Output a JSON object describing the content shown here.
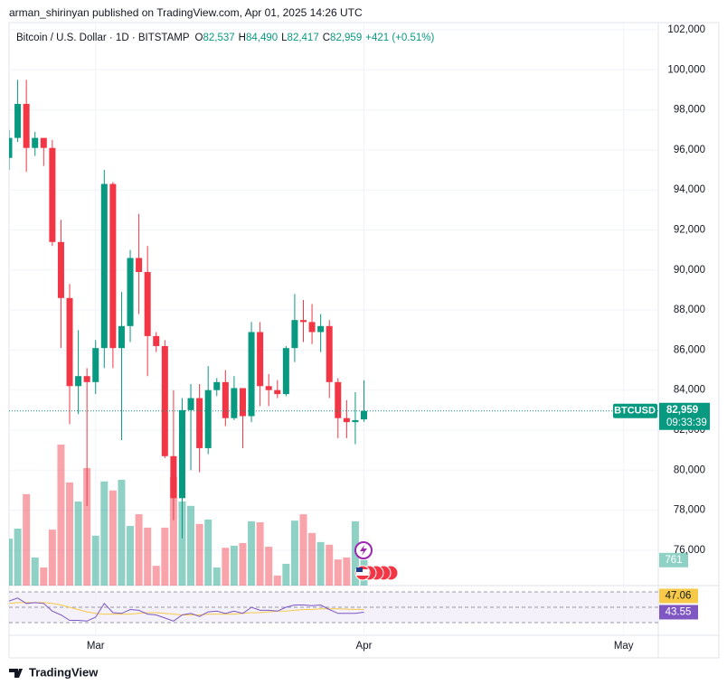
{
  "header": {
    "text": "arman_shirinyan published on TradingView.com, Apr 01, 2025 14:26 UTC"
  },
  "legend": {
    "symbol": "Bitcoin / U.S. Dollar · 1D · BITSTAMP",
    "items": [
      {
        "label": "O",
        "value": "82,537"
      },
      {
        "label": "H",
        "value": "84,490"
      },
      {
        "label": "L",
        "value": "82,417"
      },
      {
        "label": "C",
        "value": "82,959"
      }
    ],
    "change": "+421 (+0.51%)"
  },
  "footer": {
    "brand": "TradingView"
  },
  "chart_data": [
    {
      "type": "candlestick",
      "xlim": [
        0,
        75
      ],
      "xticks": [
        {
          "value": 10,
          "label": "Mar"
        },
        {
          "value": 41,
          "label": "Apr"
        },
        {
          "value": 71,
          "label": "May"
        }
      ],
      "ylim": [
        74235,
        102361
      ],
      "yticks": [
        {
          "value": 76000,
          "label": "76,000"
        },
        {
          "value": 78000,
          "label": "78,000"
        },
        {
          "value": 80000,
          "label": "80,000"
        },
        {
          "value": 82000,
          "label": "82,000"
        },
        {
          "value": 84000,
          "label": "84,000"
        },
        {
          "value": 86000,
          "label": "86,000"
        },
        {
          "value": 88000,
          "label": "88,000"
        },
        {
          "value": 90000,
          "label": "90,000"
        },
        {
          "value": 92000,
          "label": "92,000"
        },
        {
          "value": 94000,
          "label": "94,000"
        },
        {
          "value": 96000,
          "label": "96,000"
        },
        {
          "value": 98000,
          "label": "98,000"
        },
        {
          "value": 100000,
          "label": "100,000"
        },
        {
          "value": 102000,
          "label": "102,000"
        }
      ],
      "grid": true,
      "series": [
        {
          "name": "BTCUSD",
          "up_color": "#089981",
          "down_color": "#f23645",
          "open": [
            95600,
            96600,
            98300,
            96100,
            96600,
            96100,
            91400,
            88600,
            84200,
            84700,
            84400,
            86100,
            94300,
            86100,
            87200,
            90600,
            89900,
            86700,
            86200,
            80700,
            78600,
            83000,
            83600,
            81100,
            84000,
            84400,
            82600,
            84100,
            82700,
            86900,
            84200,
            84000,
            83800,
            86100,
            87500,
            87400,
            86900,
            87200,
            84400,
            82600,
            82400,
            82537
          ],
          "high": [
            97000,
            99500,
            99500,
            96900,
            96500,
            96500,
            92500,
            89300,
            87000,
            85100,
            86500,
            95000,
            94400,
            88900,
            91000,
            92800,
            91200,
            86900,
            86500,
            84000,
            83600,
            84300,
            84300,
            85200,
            84600,
            85000,
            84700,
            84100,
            87400,
            87400,
            84800,
            84500,
            86200,
            88800,
            88500,
            88300,
            87800,
            87500,
            84600,
            83500,
            83900,
            84490
          ],
          "low": [
            95000,
            96400,
            94900,
            95700,
            95200,
            91200,
            86100,
            82300,
            82800,
            78200,
            83800,
            85100,
            85100,
            81500,
            86400,
            87800,
            84700,
            85900,
            80600,
            77500,
            76600,
            80000,
            79900,
            80800,
            83700,
            82200,
            82500,
            81100,
            82400,
            83200,
            83200,
            83600,
            83700,
            85400,
            86400,
            86300,
            85900,
            83600,
            81600,
            81600,
            81300,
            82417
          ],
          "close": [
            96600,
            98300,
            96100,
            96600,
            96100,
            91400,
            88600,
            84200,
            84700,
            84400,
            86100,
            94300,
            86100,
            87200,
            90600,
            89900,
            86700,
            86200,
            80700,
            78600,
            83000,
            83600,
            81100,
            84000,
            84400,
            82600,
            84100,
            82700,
            86900,
            84200,
            84000,
            83800,
            86100,
            87500,
            87400,
            86900,
            87200,
            84400,
            82600,
            82400,
            82500,
            82959
          ],
          "volume": [
            1400,
            1700,
            2730,
            840,
            540,
            1670,
            4210,
            3080,
            2510,
            3510,
            1490,
            3110,
            2840,
            3160,
            1780,
            2130,
            1730,
            590,
            1730,
            3240,
            2510,
            2380,
            1840,
            1970,
            540,
            1130,
            1190,
            1270,
            1920,
            1890,
            1160,
            300,
            650,
            1940,
            2130,
            1570,
            1300,
            1220,
            780,
            840,
            1920,
            761
          ],
          "last_price_label": "82,959",
          "countdown": "09:33:39"
        }
      ]
    },
    {
      "type": "line",
      "levels": [
        30,
        50,
        70
      ],
      "band_color": "#ede7f6",
      "series": [
        {
          "color": "#7e57c2",
          "values": [
            58,
            62,
            55,
            56,
            55,
            45,
            40,
            33,
            33,
            32,
            37,
            55,
            43,
            42,
            47,
            46,
            41,
            40,
            36,
            32,
            40,
            42,
            38,
            44,
            45,
            42,
            45,
            42,
            50,
            46,
            46,
            45,
            50,
            53,
            53,
            52,
            53,
            47,
            42,
            42,
            42,
            43.55
          ]
        },
        {
          "color": "#f7c948",
          "values": [
            55,
            56,
            56,
            56,
            56,
            55,
            53,
            50,
            47,
            44,
            42,
            41,
            41,
            41,
            41,
            42,
            43,
            43,
            42,
            41,
            40,
            40,
            40,
            41,
            41,
            41,
            41,
            42,
            43,
            43,
            44,
            45,
            45,
            46,
            47,
            47,
            48,
            48,
            48,
            47.5,
            47.2,
            47.06
          ]
        }
      ]
    }
  ]
}
